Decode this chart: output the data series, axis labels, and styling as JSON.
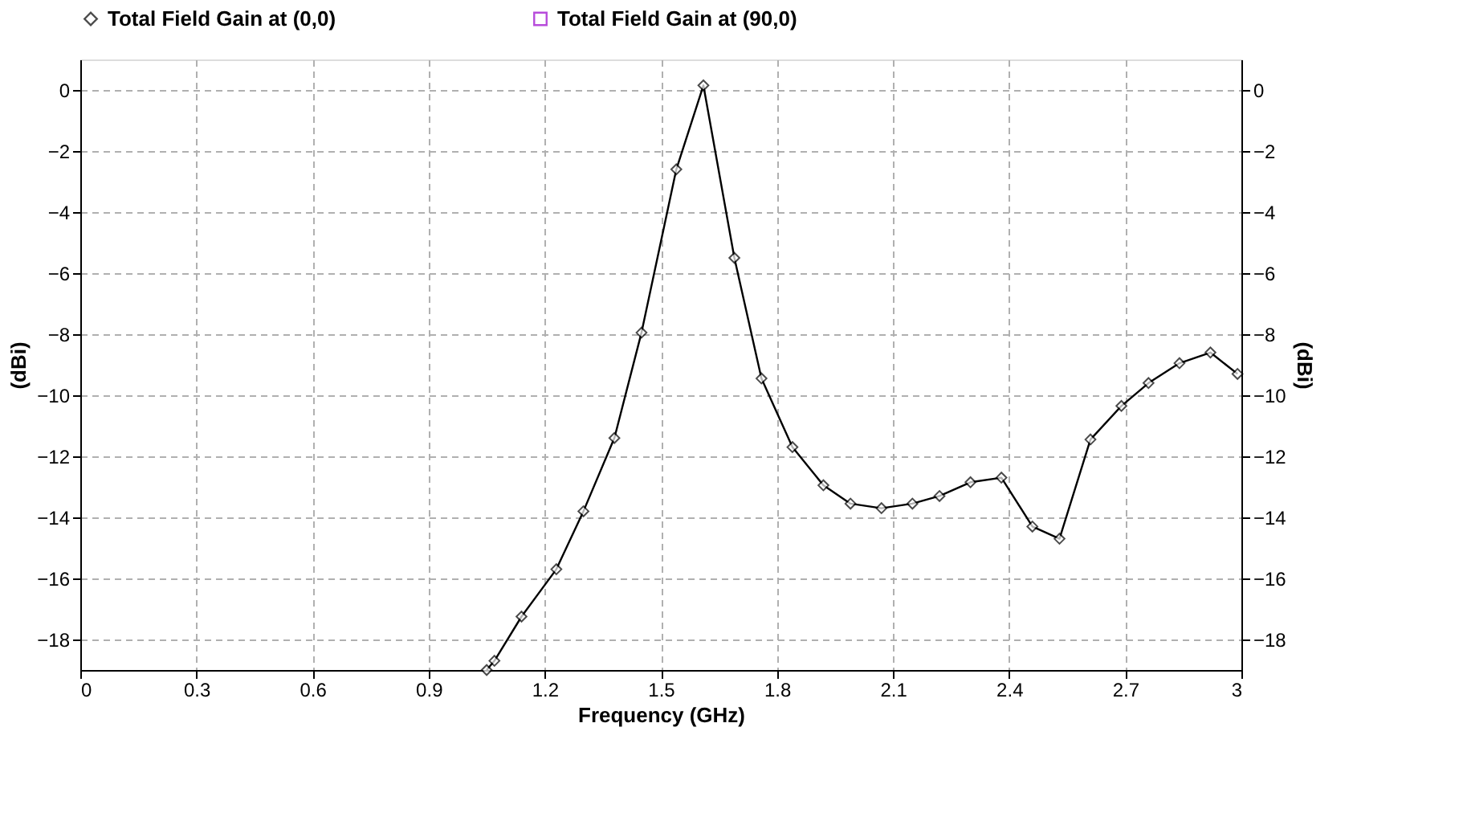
{
  "chart_data": {
    "type": "line",
    "xlabel": "Frequency (GHz)",
    "ylabel": "(dBi)",
    "y2label": "(dBi)",
    "xlim": [
      0,
      3
    ],
    "xticks": [
      0,
      0.3,
      0.6,
      0.9,
      1.2,
      1.5,
      1.8,
      2.1,
      2.4,
      2.7,
      3
    ],
    "ylim": [
      -19,
      1
    ],
    "yticks": [
      0,
      -2,
      -4,
      -6,
      -8,
      -10,
      -12,
      -14,
      -16,
      -18
    ],
    "y2lim": [
      -19,
      1
    ],
    "y2ticks": [
      0,
      -2,
      -4,
      -6,
      -8,
      -10,
      -12,
      -14,
      -16,
      -18
    ],
    "grid": true,
    "legend": "top",
    "line_style": "solid",
    "series": [
      {
        "name": "Total Field Gain at (0,0)",
        "color": "#000000",
        "marker": "diamond",
        "x": [
          1.05,
          1.07,
          1.14,
          1.23,
          1.3,
          1.38,
          1.45,
          1.54,
          1.61,
          1.69,
          1.76,
          1.84,
          1.92,
          1.99,
          2.07,
          2.15,
          2.22,
          2.3,
          2.38,
          2.46,
          2.53,
          2.61,
          2.69,
          2.76,
          2.84,
          2.92,
          2.99
        ],
        "values": [
          -19.0,
          -18.7,
          -17.25,
          -15.7,
          -13.8,
          -11.4,
          -7.95,
          -2.6,
          0.15,
          -5.5,
          -9.45,
          -11.7,
          -12.95,
          -13.55,
          -13.7,
          -13.55,
          -13.3,
          -12.85,
          -12.7,
          -14.3,
          -14.7,
          -11.45,
          -10.35,
          -9.6,
          -8.95,
          -8.6,
          -9.3
        ]
      },
      {
        "name": "Total Field Gain at (90,0)",
        "color": "#9900cc",
        "marker": "square"
      }
    ]
  }
}
